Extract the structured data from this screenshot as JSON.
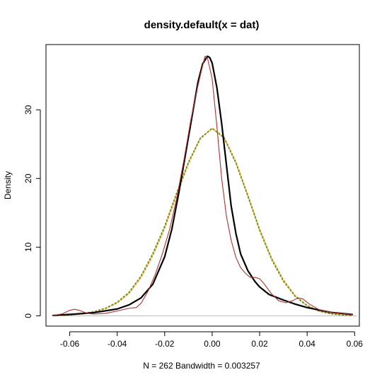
{
  "chart_data": {
    "type": "line",
    "title": "density.default(x = dat)",
    "xlabel": "N = 262   Bandwidth = 0.003257",
    "ylabel": "Density",
    "xlim": [
      -0.07,
      0.062
    ],
    "ylim": [
      -1.5,
      39.5
    ],
    "x_ticks": [
      -0.06,
      -0.04,
      -0.02,
      0.0,
      0.02,
      0.04,
      0.06
    ],
    "x_tick_labels": [
      "-0.06",
      "-0.04",
      "-0.02",
      "0.00",
      "0.02",
      "0.04",
      "0.06"
    ],
    "y_ticks": [
      0,
      10,
      20,
      30
    ],
    "y_tick_labels": [
      "0",
      "10",
      "20",
      "30"
    ],
    "zero_line": {
      "value": 0,
      "color": "#bebebe"
    },
    "series": [
      {
        "color": "#000000",
        "style": "solid",
        "width": 2.2,
        "x": [
          -0.067,
          -0.06,
          -0.05,
          -0.04,
          -0.035,
          -0.03,
          -0.025,
          -0.02,
          -0.017,
          -0.014,
          -0.011,
          -0.008,
          -0.006,
          -0.004,
          -0.002,
          -0.001,
          0.0,
          0.002,
          0.004,
          0.006,
          0.008,
          0.01,
          0.012,
          0.015,
          0.018,
          0.02,
          0.024,
          0.03,
          0.035,
          0.04,
          0.05,
          0.059
        ],
        "y": [
          0.05,
          0.2,
          0.45,
          1.0,
          1.6,
          2.6,
          4.6,
          8.6,
          12.6,
          18.0,
          24.0,
          30.0,
          34.0,
          36.7,
          37.8,
          37.6,
          36.8,
          33.2,
          28.0,
          22.0,
          16.0,
          12.0,
          9.0,
          6.6,
          5.0,
          4.2,
          3.1,
          2.3,
          1.7,
          1.2,
          0.5,
          0.2
        ]
      },
      {
        "color": "#b03030",
        "style": "solid",
        "width": 1.1,
        "x": [
          -0.067,
          -0.063,
          -0.06,
          -0.058,
          -0.056,
          -0.053,
          -0.05,
          -0.045,
          -0.04,
          -0.035,
          -0.032,
          -0.03,
          -0.027,
          -0.024,
          -0.021,
          -0.018,
          -0.015,
          -0.012,
          -0.009,
          -0.006,
          -0.004,
          -0.003,
          -0.002,
          0.0,
          0.002,
          0.004,
          0.006,
          0.008,
          0.01,
          0.012,
          0.014,
          0.016,
          0.018,
          0.02,
          0.022,
          0.025,
          0.028,
          0.031,
          0.034,
          0.036,
          0.038,
          0.041,
          0.045,
          0.05,
          0.059
        ],
        "y": [
          0.05,
          0.3,
          0.8,
          0.95,
          0.8,
          0.4,
          0.25,
          0.35,
          0.7,
          1.1,
          1.2,
          1.8,
          3.6,
          6.0,
          9.0,
          12.5,
          17.0,
          22.5,
          28.5,
          33.5,
          36.5,
          37.8,
          37.6,
          34.5,
          27.5,
          20.0,
          14.5,
          11.0,
          8.5,
          7.0,
          6.2,
          5.6,
          5.6,
          5.4,
          4.6,
          3.2,
          2.2,
          1.9,
          2.2,
          2.6,
          2.5,
          1.7,
          0.9,
          0.5,
          0.2
        ]
      },
      {
        "color": "#d4a017",
        "style": "dotted",
        "width": 2.0,
        "x": [
          -0.067,
          -0.06,
          -0.055,
          -0.05,
          -0.045,
          -0.04,
          -0.035,
          -0.03,
          -0.025,
          -0.02,
          -0.015,
          -0.01,
          -0.005,
          0.0,
          0.005,
          0.01,
          0.015,
          0.02,
          0.025,
          0.03,
          0.035,
          0.04,
          0.045,
          0.05,
          0.055,
          0.059
        ],
        "y": [
          0.05,
          0.12,
          0.28,
          0.55,
          1.05,
          1.9,
          3.3,
          5.6,
          8.8,
          12.8,
          17.6,
          22.2,
          25.8,
          27.3,
          26.0,
          22.4,
          17.6,
          12.6,
          8.4,
          5.2,
          2.9,
          1.5,
          0.7,
          0.3,
          0.12,
          0.05
        ]
      },
      {
        "color": "#6b8e23",
        "style": "dotted",
        "width": 1.4,
        "x": [
          -0.067,
          -0.06,
          -0.055,
          -0.05,
          -0.045,
          -0.04,
          -0.035,
          -0.03,
          -0.025,
          -0.02,
          -0.015,
          -0.01,
          -0.005,
          0.0,
          0.005,
          0.01,
          0.015,
          0.02,
          0.025,
          0.03,
          0.035,
          0.04,
          0.045,
          0.05,
          0.055,
          0.059
        ],
        "y": [
          0.05,
          0.15,
          0.32,
          0.6,
          1.1,
          2.0,
          3.45,
          5.8,
          9.1,
          13.1,
          17.9,
          22.4,
          25.9,
          27.3,
          25.9,
          22.2,
          17.4,
          12.4,
          8.2,
          5.0,
          2.8,
          1.45,
          0.68,
          0.28,
          0.11,
          0.05
        ]
      }
    ]
  }
}
